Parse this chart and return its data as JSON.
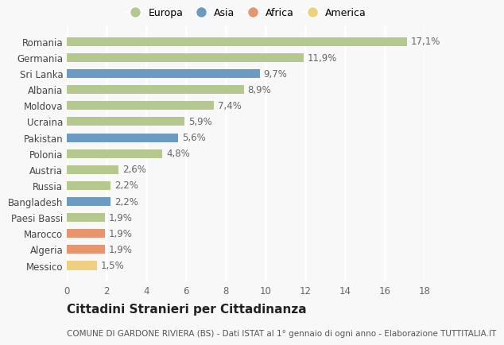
{
  "categories": [
    "Romania",
    "Germania",
    "Sri Lanka",
    "Albania",
    "Moldova",
    "Ucraina",
    "Pakistan",
    "Polonia",
    "Austria",
    "Russia",
    "Bangladesh",
    "Paesi Bassi",
    "Marocco",
    "Algeria",
    "Messico"
  ],
  "values": [
    17.1,
    11.9,
    9.7,
    8.9,
    7.4,
    5.9,
    5.6,
    4.8,
    2.6,
    2.2,
    2.2,
    1.9,
    1.9,
    1.9,
    1.5
  ],
  "labels": [
    "17,1%",
    "11,9%",
    "9,7%",
    "8,9%",
    "7,4%",
    "5,9%",
    "5,6%",
    "4,8%",
    "2,6%",
    "2,2%",
    "2,2%",
    "1,9%",
    "1,9%",
    "1,9%",
    "1,5%"
  ],
  "continents": [
    "Europa",
    "Europa",
    "Asia",
    "Europa",
    "Europa",
    "Europa",
    "Asia",
    "Europa",
    "Europa",
    "Europa",
    "Asia",
    "Europa",
    "Africa",
    "Africa",
    "America"
  ],
  "colors": {
    "Europa": "#b5c98e",
    "Asia": "#6b9bc3",
    "Africa": "#e8956d",
    "America": "#f0d080"
  },
  "xlim": [
    0,
    18
  ],
  "xticks": [
    0,
    2,
    4,
    6,
    8,
    10,
    12,
    14,
    16,
    18
  ],
  "title": "Cittadini Stranieri per Cittadinanza",
  "subtitle": "COMUNE DI GARDONE RIVIERA (BS) - Dati ISTAT al 1° gennaio di ogni anno - Elaborazione TUTTITALIA.IT",
  "background_color": "#f8f8f8",
  "grid_color": "#ffffff",
  "bar_height": 0.55,
  "label_fontsize": 8.5,
  "tick_fontsize": 8.5,
  "title_fontsize": 11,
  "subtitle_fontsize": 7.5,
  "legend_order": [
    "Europa",
    "Asia",
    "Africa",
    "America"
  ]
}
